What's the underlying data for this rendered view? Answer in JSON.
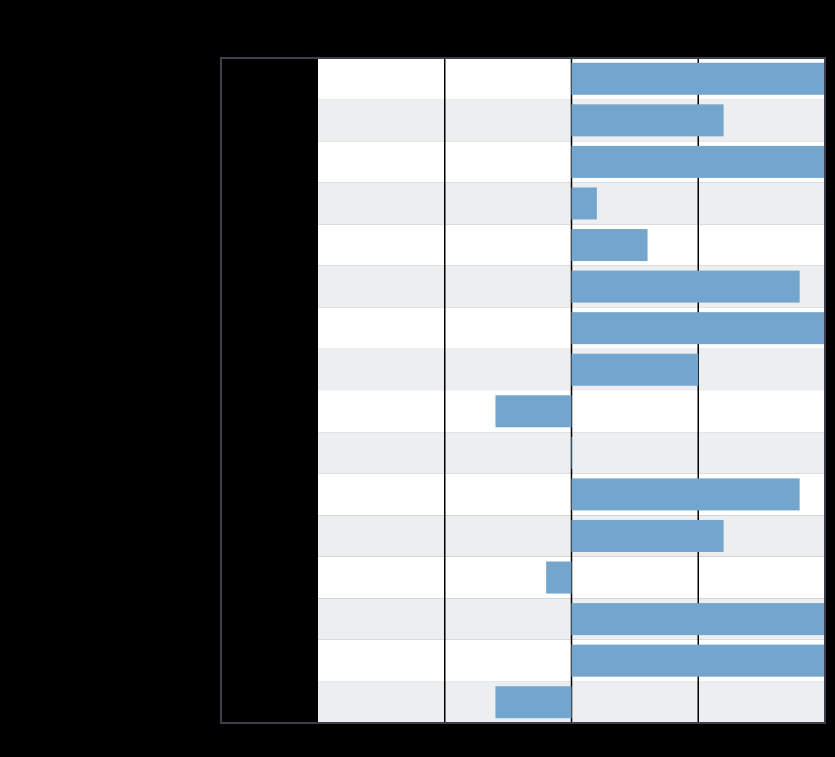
{
  "chart_data": {
    "type": "bar",
    "orientation": "horizontal",
    "title": "",
    "xlabel": "",
    "ylabel": "",
    "categories": [
      "",
      "",
      "",
      "",
      "",
      "",
      "",
      "",
      "",
      "",
      "",
      "",
      "",
      "",
      "",
      ""
    ],
    "values": [
      1.0,
      0.6,
      1.0,
      0.1,
      0.3,
      0.9,
      1.0,
      0.5,
      -0.3,
      0.0,
      0.9,
      0.6,
      -0.1,
      1.0,
      1.0,
      -0.3
    ],
    "xlim": [
      -1.0,
      1.0
    ],
    "xticks": [
      -1.0,
      -0.5,
      0.0,
      0.5,
      1.0
    ],
    "grid": true,
    "legend": "none",
    "colors": {
      "bar": "#73a5cd",
      "row_band": "#edeef0",
      "row_plain": "#ffffff",
      "gridline": "#000000",
      "frame": "#3d4047",
      "background": "#000000"
    }
  }
}
